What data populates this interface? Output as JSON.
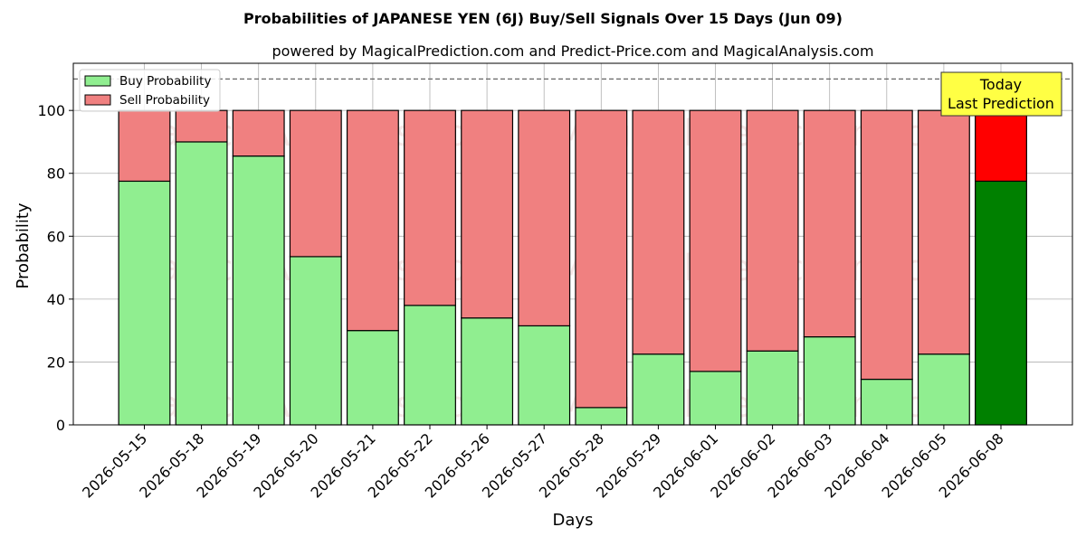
{
  "chart_data": {
    "type": "bar",
    "stacked": true,
    "title": "Probabilities of JAPANESE YEN (6J) Buy/Sell Signals Over 15 Days (Jun 09)",
    "subtitle": "powered by MagicalPrediction.com and Predict-Price.com and MagicalAnalysis.com",
    "xlabel": "Days",
    "ylabel": "Probability",
    "ylim": [
      0,
      115
    ],
    "yticks": [
      0,
      20,
      40,
      60,
      80,
      100
    ],
    "grid": true,
    "legend_position": "top-left",
    "reference_line": 110,
    "categories": [
      "2026-05-15",
      "2026-05-18",
      "2026-05-19",
      "2026-05-20",
      "2026-05-21",
      "2026-05-22",
      "2026-05-26",
      "2026-05-27",
      "2026-05-28",
      "2026-05-29",
      "2026-06-01",
      "2026-06-02",
      "2026-06-03",
      "2026-06-04",
      "2026-06-05",
      "2026-06-08"
    ],
    "series": [
      {
        "name": "Buy Probability",
        "color": "#90ee90",
        "highlight_color": "#008000",
        "values": [
          77.5,
          90,
          85.5,
          53.5,
          30,
          38,
          34,
          31.5,
          5.5,
          22.5,
          17,
          23.5,
          28,
          14.5,
          22.5,
          77.5
        ]
      },
      {
        "name": "Sell Probability",
        "color": "#f08080",
        "highlight_color": "#ff0000",
        "values": [
          22.5,
          10,
          14.5,
          46.5,
          70,
          62,
          66,
          68.5,
          94.5,
          77.5,
          83,
          76.5,
          72,
          85.5,
          77.5,
          22.5
        ]
      }
    ],
    "highlight_index": 15,
    "annotation": {
      "line1": "Today",
      "line2": "Last Prediction",
      "background": "#ffff44"
    },
    "watermarks": [
      "MagicalAnalysis.com",
      "MagicalPrediction.com"
    ]
  }
}
